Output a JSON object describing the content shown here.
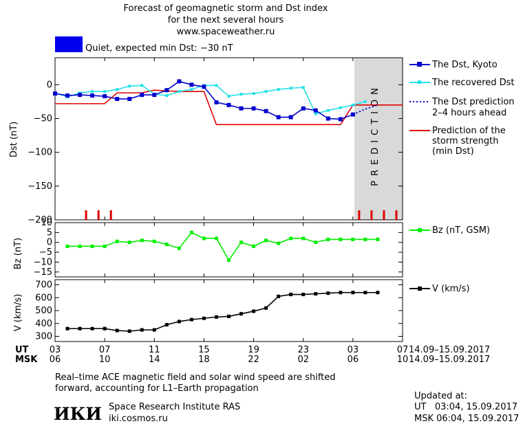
{
  "header": {
    "title_lines": [
      "Forecast of geomagnetic storm and Dst index",
      "for the next several hours",
      "www.spaceweather.ru"
    ],
    "status_text": "Quiet, expected min Dst: −30 nT",
    "status_color": "#0000ee"
  },
  "colors": {
    "dst_kyoto": "#0000cc",
    "recovered": "#22e0e8",
    "prediction_dotted": "#0000cc",
    "storm_strength": "#dd0000",
    "bz": "#00ee00",
    "speed": "#000000",
    "prediction_band": "#d9d9d9",
    "prediction_text": "#ffffff"
  },
  "legend": {
    "dst_kyoto": "The Dst, Kyoto",
    "recovered": "The recovered Dst",
    "prediction_1": "The Dst prediction",
    "prediction_2": "2–4 hours ahead",
    "storm_1": "Prediction of the",
    "storm_2": "storm strength",
    "storm_3": "(min Dst)",
    "bz": "Bz (nT, GSM)",
    "speed": "V (km/s)"
  },
  "prediction_label": "PREDICTION",
  "time_axis": {
    "ut_label": "UT",
    "msk_label": "MSK",
    "ut_ticks": [
      "03",
      "07",
      "11",
      "15",
      "19",
      "23",
      "03",
      "07"
    ],
    "msk_ticks": [
      "06",
      "10",
      "14",
      "18",
      "22",
      "02",
      "06",
      "10"
    ],
    "date_range_ut": "14.09–15.09.2017",
    "date_range_msk": "14.09–15.09.2017"
  },
  "footer": {
    "note_1": "Real–time ACE magnetic field and solar wind speed are shifted",
    "note_2": "forward, accounting for L1–Earth propagation",
    "institute": "Space Research Institute RAS",
    "site": "iki.cosmos.ru",
    "logo_text": "ИКИ",
    "updated_label": "Updated at:",
    "updated_ut": "UT   03:04, 15.09.2017",
    "updated_msk": "MSK 06:04, 15.09.2017"
  },
  "chart_data": [
    {
      "type": "line",
      "ylabel": "Dst (nT)",
      "ylim": [
        -200,
        40
      ],
      "yticks": [
        0,
        -50,
        -100,
        -150,
        -200
      ],
      "xlim": [
        3,
        31
      ],
      "prediction_start": 27,
      "series": [
        {
          "name": "The Dst, Kyoto",
          "x": [
            3,
            4,
            5,
            6,
            7,
            8,
            9,
            10,
            11,
            12,
            13,
            14,
            15,
            16,
            17,
            18,
            19,
            20,
            21,
            22,
            23,
            24,
            25,
            26,
            27
          ],
          "y": [
            -13,
            -16,
            -15,
            -16,
            -17,
            -21,
            -21,
            -15,
            -15,
            -8,
            5,
            0,
            -3,
            -26,
            -30,
            -35,
            -35,
            -39,
            -48,
            -48,
            -35,
            -38,
            -50,
            -51,
            -44
          ]
        },
        {
          "name": "The recovered Dst",
          "x": [
            3,
            4,
            5,
            6,
            7,
            8,
            9,
            10,
            11,
            12,
            13,
            14,
            15,
            16,
            17,
            18,
            19,
            20,
            21,
            22,
            23,
            24,
            25,
            26,
            27,
            28
          ],
          "y": [
            -12,
            -18,
            -12,
            -10,
            -10,
            -7,
            -2,
            -1,
            -14,
            -16,
            -10,
            -7,
            -1,
            -1,
            -17,
            -14,
            -13,
            -10,
            -7,
            -5,
            -4,
            -43,
            -38,
            -34,
            -30,
            -25
          ]
        },
        {
          "name": "The Dst prediction 2–4 hours ahead",
          "x": [
            27,
            28,
            29
          ],
          "y": [
            -44,
            -36,
            -30
          ]
        },
        {
          "name": "Prediction of the storm strength (min Dst)",
          "x": [
            3,
            7,
            8,
            10,
            11,
            13,
            15,
            16,
            25,
            26,
            27,
            31
          ],
          "y": [
            -28,
            -28,
            -12,
            -12,
            -8,
            -10,
            -10,
            -59,
            -59,
            -59,
            -30,
            -30
          ]
        }
      ],
      "markers_x": [
        5.5,
        6.5,
        7.5,
        27.5,
        28.5,
        29.5,
        30.5
      ]
    },
    {
      "type": "line",
      "ylabel": "Bz (nT)",
      "ylim": [
        -17.5,
        10
      ],
      "yticks": [
        10,
        5,
        0,
        -5,
        -10,
        -15
      ],
      "series": [
        {
          "name": "Bz (nT, GSM)",
          "x": [
            4,
            5,
            6,
            7,
            8,
            9,
            10,
            11,
            12,
            13,
            14,
            15,
            16,
            17,
            18,
            19,
            20,
            21,
            22,
            23,
            24,
            25,
            26,
            27,
            28,
            29
          ],
          "y": [
            -2,
            -2,
            -2,
            -2,
            0.5,
            0,
            1,
            0.5,
            -1,
            -3,
            5,
            2,
            2,
            -9,
            0,
            -2,
            1,
            -0.5,
            2,
            2,
            0,
            1.5,
            1.5,
            1.5,
            1.5,
            1.5
          ]
        }
      ]
    },
    {
      "type": "line",
      "ylabel": "V (km/s)",
      "ylim": [
        260,
        740
      ],
      "yticks": [
        700,
        600,
        500,
        400,
        300
      ],
      "series": [
        {
          "name": "V (km/s)",
          "x": [
            4,
            5,
            6,
            7,
            8,
            9,
            10,
            11,
            12,
            13,
            14,
            15,
            16,
            17,
            18,
            19,
            20,
            21,
            22,
            23,
            24,
            25,
            26,
            27,
            28,
            29
          ],
          "y": [
            360,
            360,
            360,
            360,
            345,
            340,
            350,
            350,
            390,
            415,
            430,
            440,
            450,
            455,
            475,
            495,
            520,
            610,
            625,
            625,
            630,
            635,
            640,
            640,
            640,
            640
          ]
        }
      ]
    }
  ]
}
